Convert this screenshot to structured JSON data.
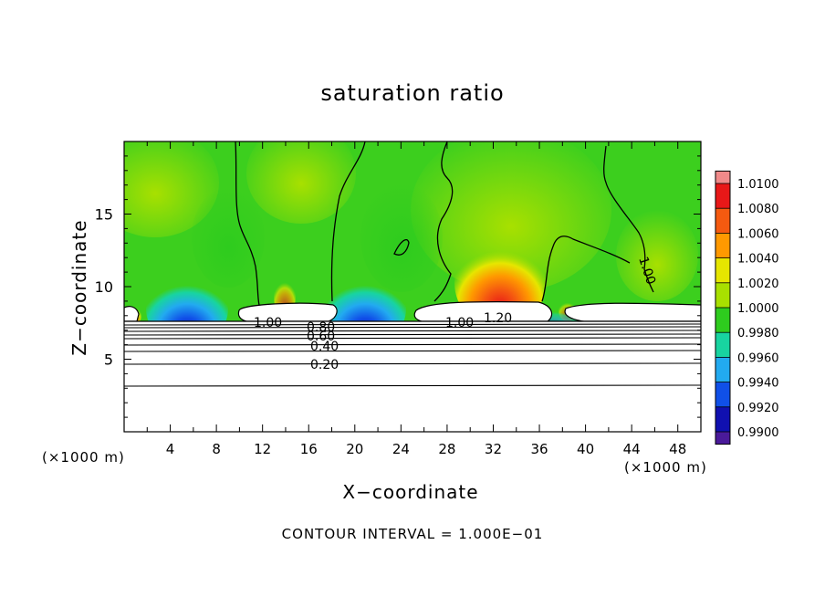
{
  "chart_data": {
    "type": "heatmap",
    "title": "saturation ratio",
    "xlabel": "X−coordinate",
    "ylabel": "Z−coordinate",
    "x_units": "(×1000 m)",
    "y_units": "(×1000 m)",
    "xlim": [
      0,
      50
    ],
    "ylim": [
      0,
      20
    ],
    "x_ticks": [
      4,
      8,
      12,
      16,
      20,
      24,
      28,
      32,
      36,
      40,
      44,
      48
    ],
    "y_ticks": [
      5,
      10,
      15
    ],
    "colorbar": {
      "levels": [
        "1.0100",
        "1.0080",
        "1.0060",
        "1.0040",
        "1.0020",
        "1.0000",
        "0.9980",
        "0.9960",
        "0.9940",
        "0.9920",
        "0.9900"
      ],
      "colors": [
        "#f08a8a",
        "#e81818",
        "#f55a10",
        "#ff9900",
        "#e6e600",
        "#a8e000",
        "#2ecc1e",
        "#18d4a0",
        "#22aaf0",
        "#1050e8",
        "#1010b0",
        "#4a1a9a"
      ]
    },
    "contour_labels": [
      "1.00",
      "0.80",
      "0.60",
      "0.40",
      "0.20",
      "1.00",
      "1.20",
      "1.00"
    ],
    "contour_interval_text": "CONTOUR INTERVAL = 1.000E−01",
    "field_color": "#3ccf1e"
  }
}
